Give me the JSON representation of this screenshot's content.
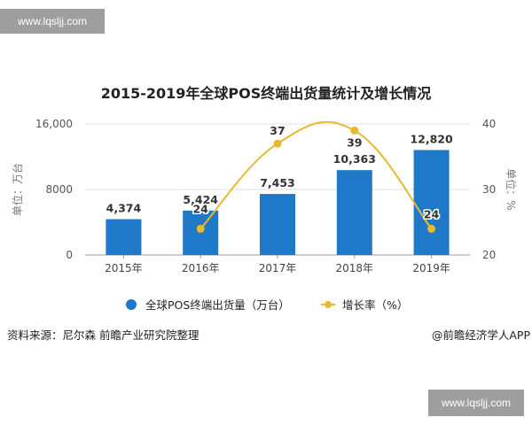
{
  "watermarks": {
    "top_left": "www.lqsljj.com",
    "bottom_right": "www.lqsljj.com"
  },
  "footer": {
    "source": "资料来源：尼尔森 前瞻产业研究院整理",
    "credit": "@前瞻经济学人APP"
  },
  "chart_data": {
    "type": "bar+line",
    "title": "2015-2019年全球POS终端出货量统计及增长情况",
    "categories": [
      "2015年",
      "2016年",
      "2017年",
      "2018年",
      "2019年"
    ],
    "series": [
      {
        "name": "全球POS终端出货量（万台）",
        "type": "bar",
        "axis": "left",
        "values": [
          4374,
          5424,
          7453,
          10363,
          12820
        ],
        "labels": [
          "4,374",
          "5,424",
          "7,453",
          "10,363",
          "12,820"
        ],
        "color": "#1f78c8"
      },
      {
        "name": "增长率（%）",
        "type": "line",
        "axis": "right",
        "values": [
          null,
          24,
          37,
          39,
          24
        ],
        "labels": [
          "",
          "24",
          "37",
          "39",
          "24"
        ],
        "color": "#e8b830"
      }
    ],
    "ylabel_left": "单位：万台",
    "ylabel_right": "单位：%",
    "ylim_left": [
      0,
      16000
    ],
    "yticks_left": [
      "0",
      "8000",
      "16,000"
    ],
    "ylim_right": [
      20,
      40
    ],
    "yticks_right": [
      "20",
      "30",
      "40"
    ],
    "grid": true,
    "legend_position": "bottom"
  }
}
